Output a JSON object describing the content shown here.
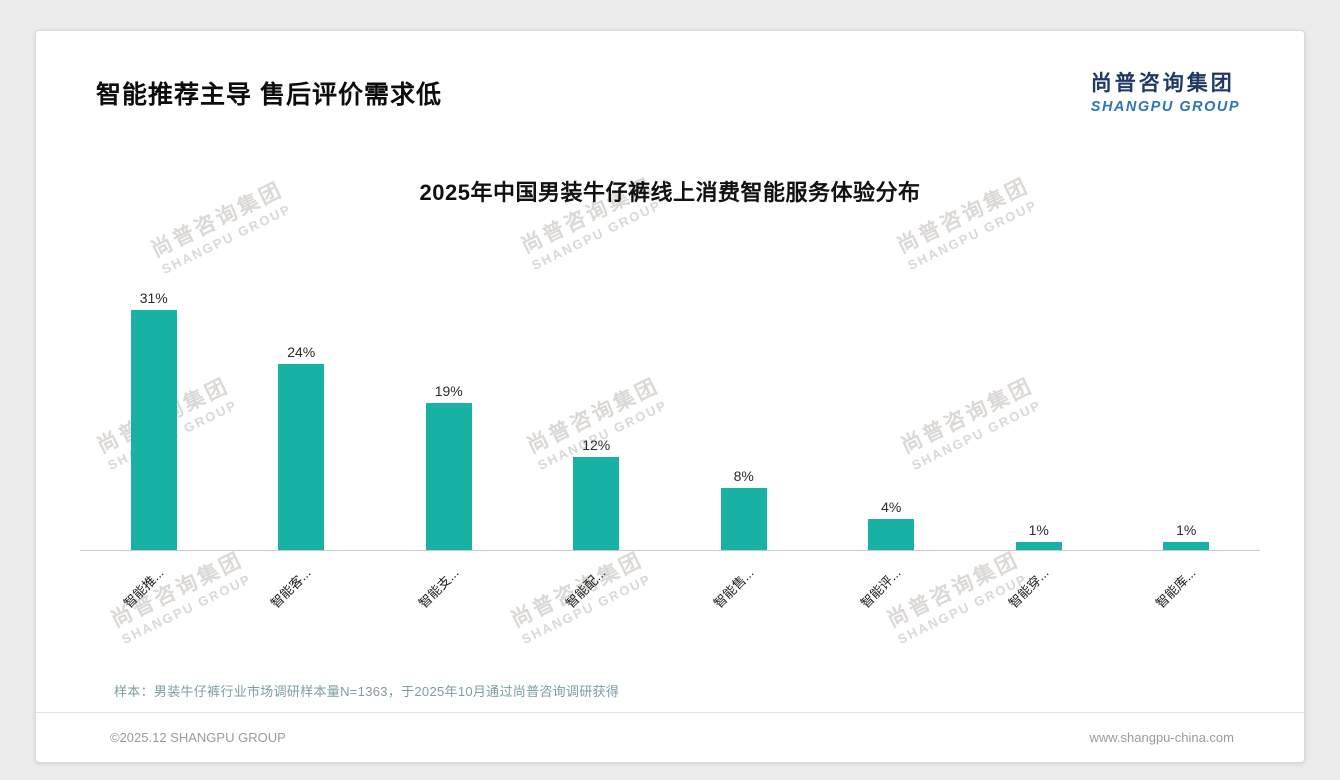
{
  "header": {
    "title": "智能推荐主导 售后评价需求低"
  },
  "logo": {
    "cn": "尚普咨询集团",
    "en": "SHANGPU GROUP"
  },
  "watermark": {
    "line1": "尚普咨询集团",
    "line2": "SHANGPU GROUP"
  },
  "chart_data": {
    "type": "bar",
    "title": "2025年中国男装牛仔裤线上消费智能服务体验分布",
    "categories": [
      "智能推...",
      "智能客...",
      "智能支...",
      "智能配...",
      "智能售...",
      "智能评...",
      "智能穿...",
      "智能库..."
    ],
    "values": [
      31,
      24,
      19,
      12,
      8,
      4,
      1,
      1
    ],
    "value_labels": [
      "31%",
      "24%",
      "19%",
      "12%",
      "8%",
      "4%",
      "1%",
      "1%"
    ],
    "unit": "%",
    "xlabel": "",
    "ylabel": "",
    "ylim": [
      0,
      31
    ],
    "grid": false,
    "legend": false,
    "bar_color": "#18b2a4"
  },
  "footer": {
    "note": "样本：男装牛仔裤行业市场调研样本量N=1363，于2025年10月通过尚普咨询调研获得",
    "copyright": "©2025.12 SHANGPU GROUP",
    "website": "www.shangpu-china.com"
  },
  "colors": {
    "bar": "#18b2a4",
    "logo_cn": "#1f3864",
    "logo_en": "#2e75b6",
    "note": "#7d9ca6",
    "axis": "#c9c9c9"
  }
}
